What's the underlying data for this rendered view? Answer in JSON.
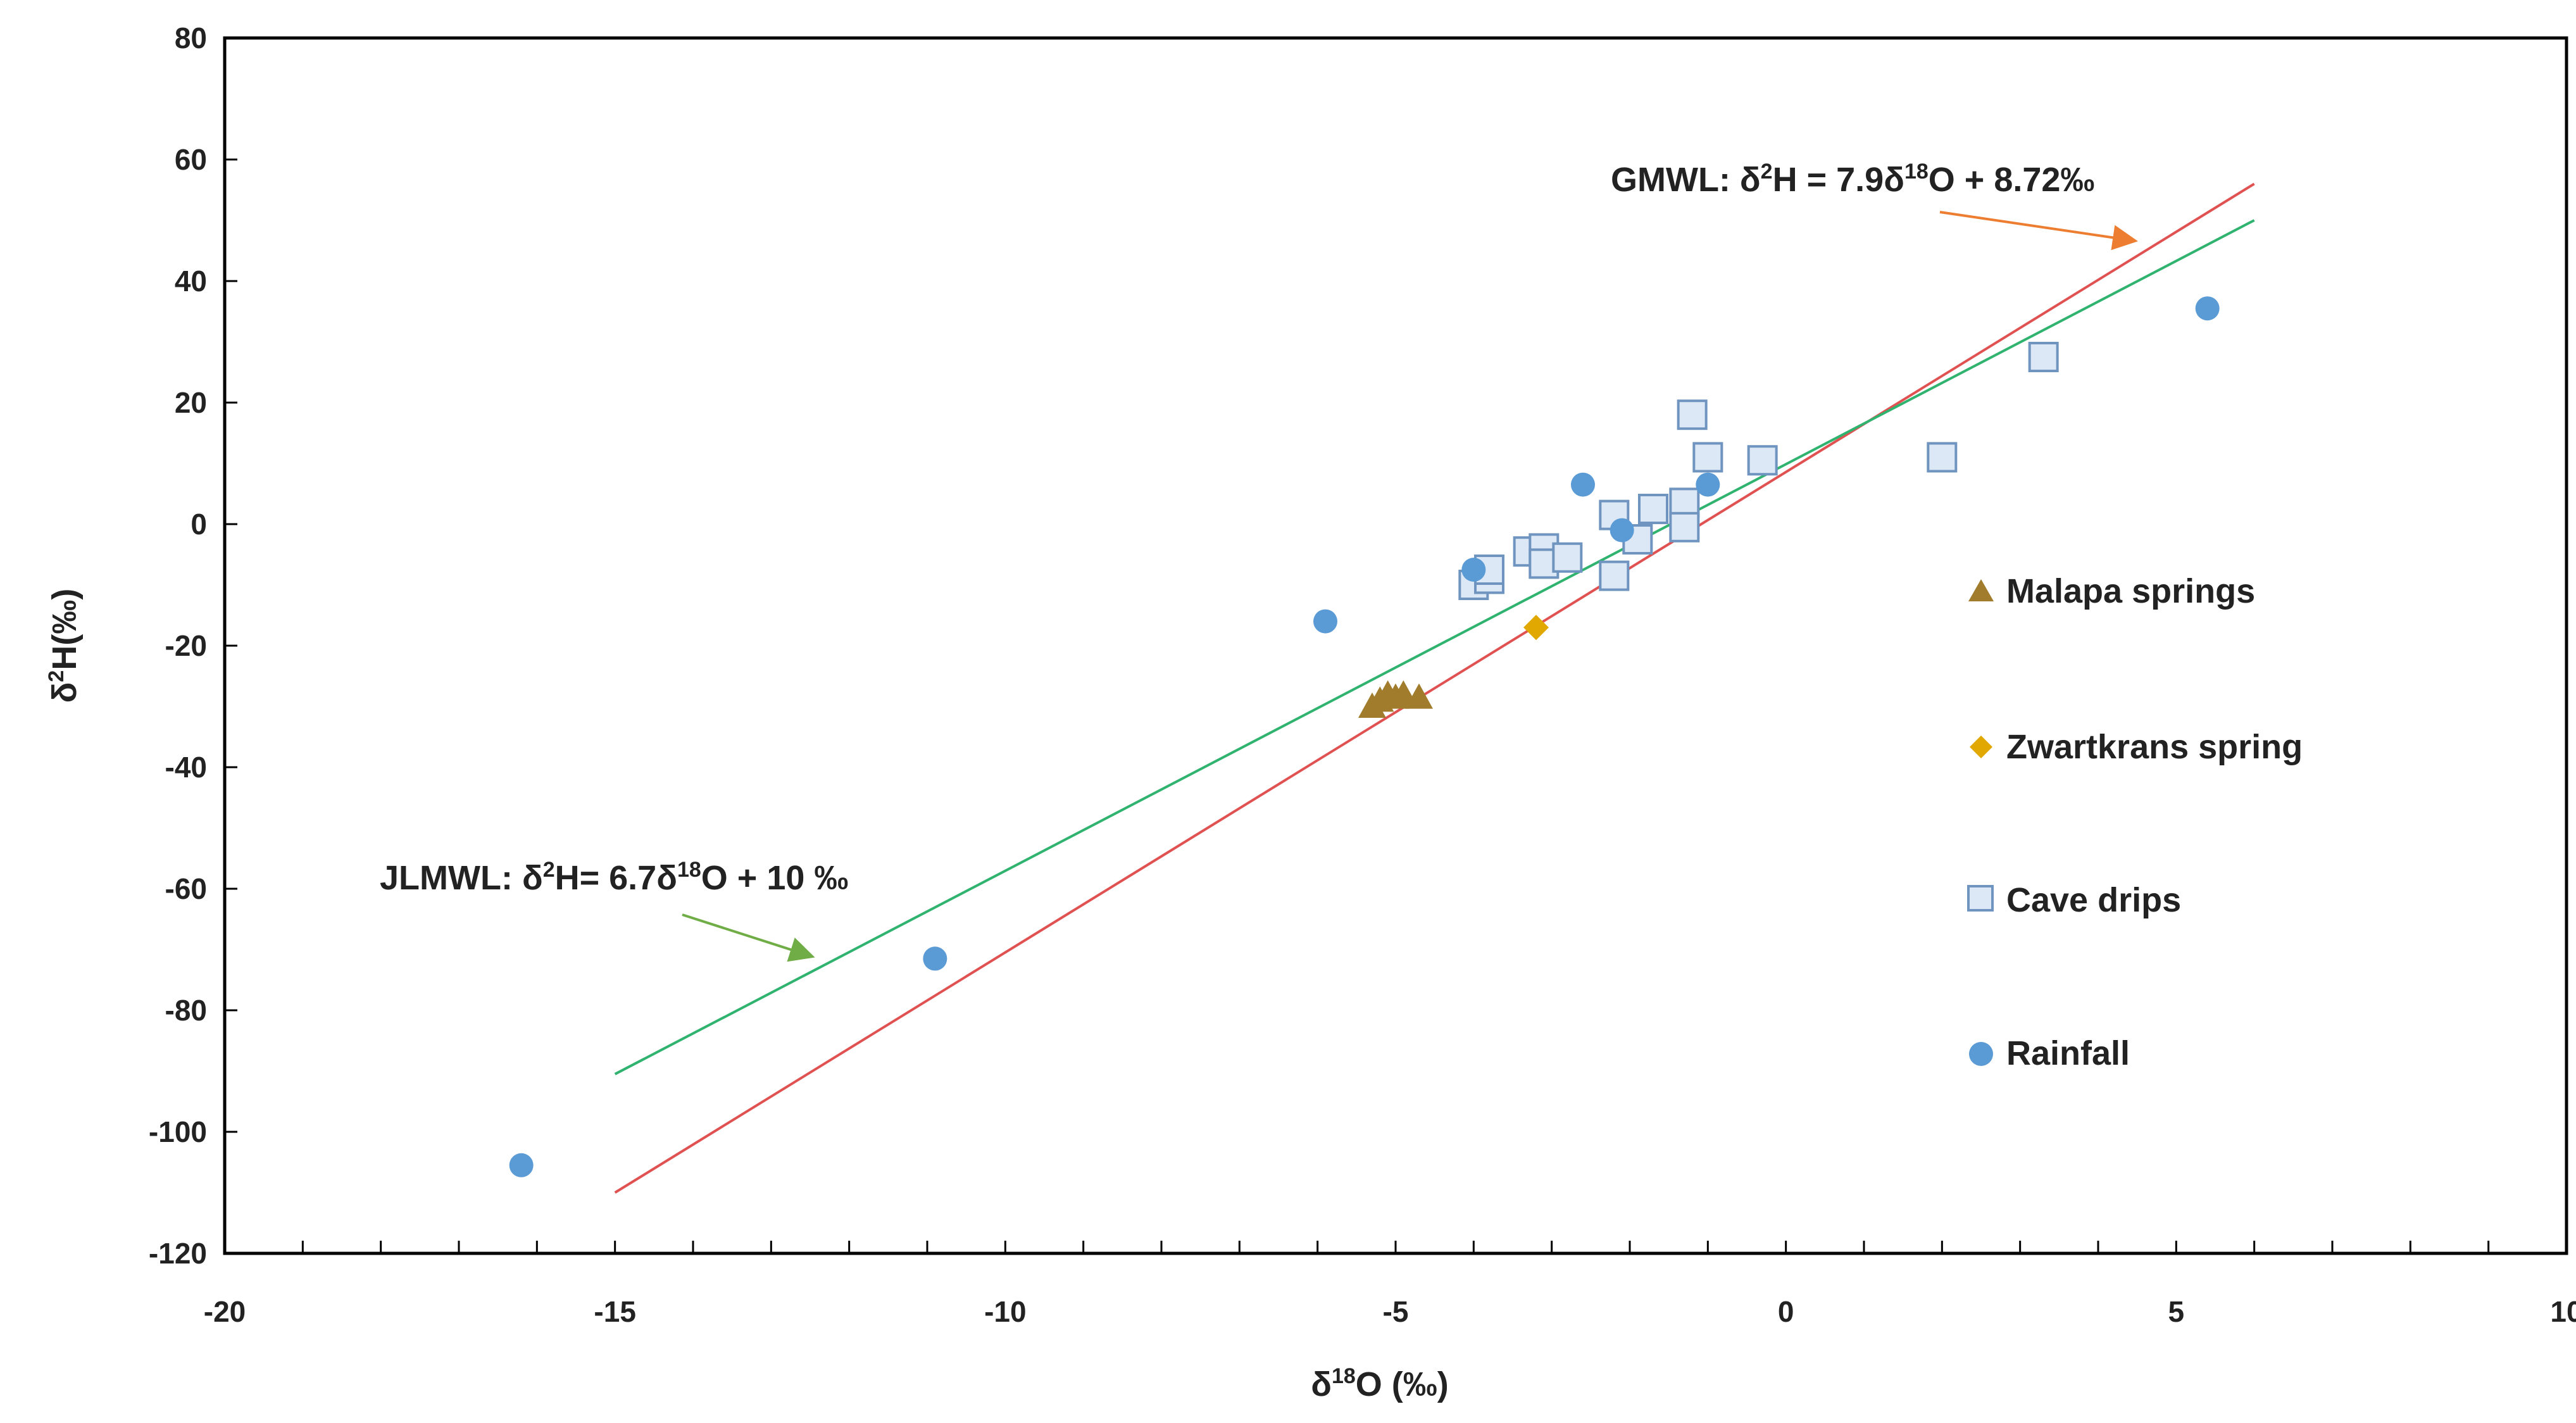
{
  "chart_data": {
    "type": "scatter",
    "title": "",
    "xlabel": {
      "prefix": "δ",
      "sup": "18",
      "suffix": "O (‰)"
    },
    "ylabel": {
      "prefix": "δ",
      "sup": "2",
      "suffix": "H(‰)"
    },
    "xlim": [
      -20,
      10
    ],
    "ylim": [
      -120,
      80
    ],
    "xticks": [
      -20,
      -15,
      -10,
      -5,
      0,
      5,
      10
    ],
    "yticks": [
      -120,
      -100,
      -80,
      -60,
      -40,
      -20,
      0,
      20,
      40,
      60,
      80
    ],
    "grid": false,
    "legend_position": "right",
    "series": [
      {
        "name": "Malapa springs",
        "marker": "triangle",
        "color": "#a07c2c",
        "points": [
          [
            -5.3,
            -30
          ],
          [
            -5.2,
            -29
          ],
          [
            -5.1,
            -28
          ],
          [
            -5.0,
            -28.5
          ],
          [
            -4.9,
            -28
          ],
          [
            -4.7,
            -28.5
          ]
        ]
      },
      {
        "name": "Zwartkrans spring",
        "marker": "diamond",
        "color": "#e0a800",
        "points": [
          [
            -3.2,
            -17
          ]
        ]
      },
      {
        "name": "Cave drips",
        "marker": "square",
        "color": "#dce8f5",
        "stroke": "#6f94bf",
        "points": [
          [
            -4.0,
            -10
          ],
          [
            -3.8,
            -9
          ],
          [
            -3.8,
            -7.5
          ],
          [
            -3.3,
            -4.5
          ],
          [
            -3.1,
            -4
          ],
          [
            -3.1,
            -6.5
          ],
          [
            -2.8,
            -5.5
          ],
          [
            -2.2,
            1.5
          ],
          [
            -2.2,
            -8.5
          ],
          [
            -1.9,
            -2.5
          ],
          [
            -1.7,
            2.5
          ],
          [
            -1.3,
            3.5
          ],
          [
            -1.3,
            -0.5
          ],
          [
            -1.2,
            18
          ],
          [
            -1.0,
            11
          ],
          [
            -0.3,
            10.5
          ],
          [
            2.0,
            11
          ],
          [
            3.3,
            27.5
          ]
        ]
      },
      {
        "name": "Rainfall",
        "marker": "circle",
        "color": "#5b9bd5",
        "points": [
          [
            -16.2,
            -105.5
          ],
          [
            -10.9,
            -71.5
          ],
          [
            -5.9,
            -16
          ],
          [
            -4.0,
            -7.5
          ],
          [
            -2.6,
            6.5
          ],
          [
            -2.1,
            -1
          ],
          [
            -1.0,
            6.5
          ],
          [
            5.4,
            35.5
          ]
        ]
      }
    ],
    "lines": [
      {
        "name": "GMWL",
        "color": "#e05252",
        "x": [
          -15,
          6
        ],
        "y": [
          -110,
          56
        ]
      },
      {
        "name": "JLMWL",
        "color": "#2fb36f",
        "x": [
          -15,
          6
        ],
        "y": [
          -90.5,
          50
        ]
      }
    ],
    "annotations": [
      {
        "id": "gmwl",
        "parts": [
          "GMWL: δ",
          "2",
          "H = 7.9δ",
          "18",
          "O + 8.72‰"
        ],
        "color": "#ed7d31"
      },
      {
        "id": "jlmwl",
        "parts": [
          "JLMWL: δ",
          "2",
          "H= 6.7δ",
          "18",
          "O + 10 ‰"
        ],
        "color": "#70ad47"
      }
    ]
  }
}
